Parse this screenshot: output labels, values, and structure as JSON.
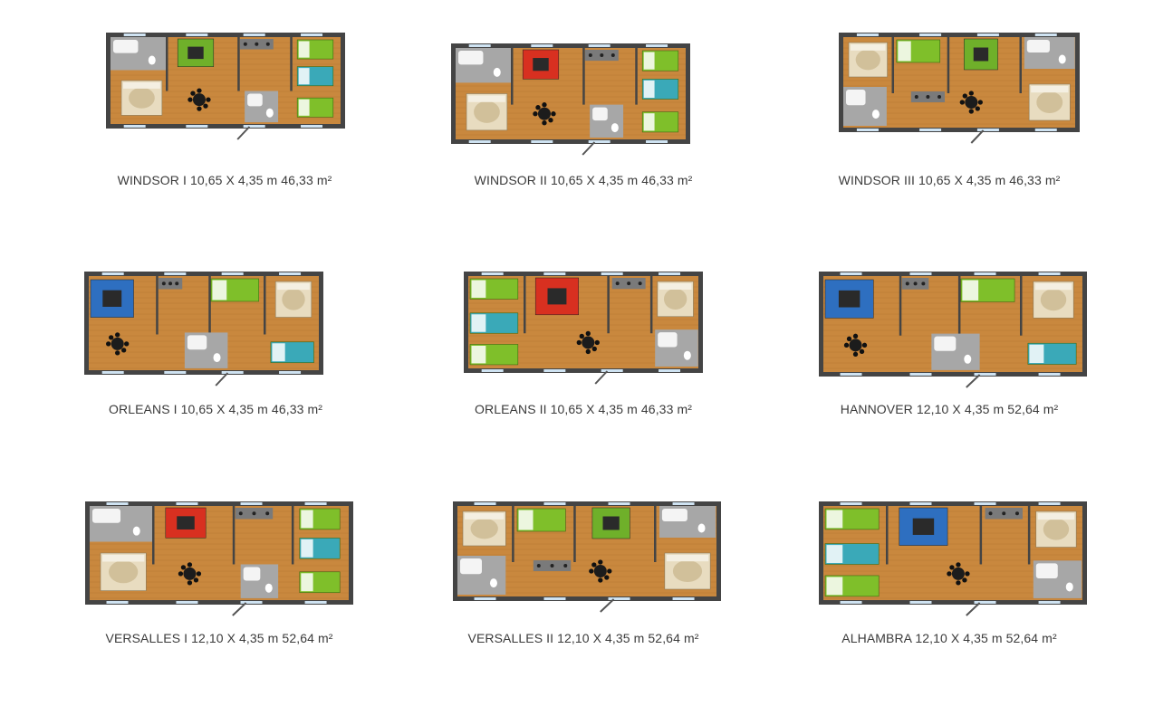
{
  "colors": {
    "wall": "#444444",
    "floor": "#c9883e",
    "floor_dark": "#b57530",
    "tile": "#a7a7a7",
    "bed_green": "#7fbf2a",
    "bed_teal": "#3aa9b8",
    "sofa_red": "#d83020",
    "sofa_blue": "#2e6fc0",
    "sofa_green": "#6fb02a",
    "table": "#1c1c1c",
    "bed_cream": "#e8dcc0",
    "window": "#cfe3f2",
    "door": "#555555"
  },
  "plans": [
    {
      "caption": "WINDSOR I 10,65 X 4,35 m  46,33 m²",
      "icon": "floor-plan-icon",
      "sofa": "green",
      "layout": "a"
    },
    {
      "caption": "WINDSOR II 10,65 X 4,35 m  46,33 m²",
      "icon": "floor-plan-icon",
      "sofa": "red",
      "layout": "b"
    },
    {
      "caption": "WINDSOR III 10,65 X 4,35 m  46,33 m²",
      "icon": "floor-plan-icon",
      "sofa": "green",
      "layout": "c"
    },
    {
      "caption": "ORLEANS I 10,65 X 4,35 m  46,33 m²",
      "icon": "floor-plan-icon",
      "sofa": "blue",
      "layout": "d"
    },
    {
      "caption": "ORLEANS II 10,65 X 4,35 m  46,33 m²",
      "icon": "floor-plan-icon",
      "sofa": "red",
      "layout": "e"
    },
    {
      "caption": "HANNOVER 12,10 X 4,35 m  52,64 m²",
      "icon": "floor-plan-icon",
      "sofa": "blue",
      "layout": "d"
    },
    {
      "caption": "VERSALLES I 12,10 X 4,35 m  52,64 m²",
      "icon": "floor-plan-icon",
      "sofa": "red",
      "layout": "b"
    },
    {
      "caption": "VERSALLES II 12,10 X 4,35 m  52,64 m²",
      "icon": "floor-plan-icon",
      "sofa": "green",
      "layout": "c"
    },
    {
      "caption": "ALHAMBRA 12,10 X 4,35 m  52,64 m²",
      "icon": "floor-plan-icon",
      "sofa": "blue",
      "layout": "e"
    }
  ]
}
